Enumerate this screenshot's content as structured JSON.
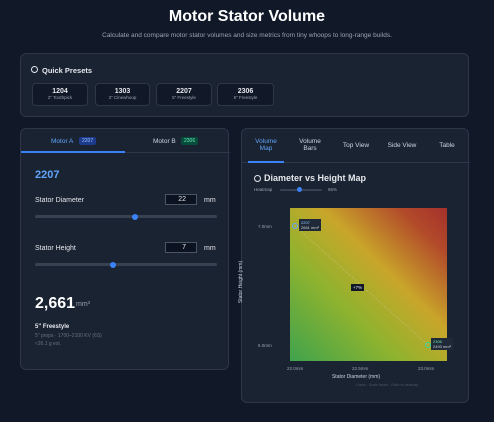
{
  "header": {
    "title": "Motor Stator Volume",
    "subtitle": "Calculate and compare motor stator volumes and size metrics from tiny whoops to long-range builds."
  },
  "presets": {
    "title": "Quick Presets",
    "items": [
      {
        "code": "1204",
        "label": "2\" Toothpick"
      },
      {
        "code": "1303",
        "label": "3\" Cinewhoop"
      },
      {
        "code": "2207",
        "label": "5\" Freestyle"
      },
      {
        "code": "2306",
        "label": "5\" Freestyle"
      }
    ]
  },
  "motor_panel": {
    "tabs": [
      {
        "label": "Motor A",
        "badge": "2207"
      },
      {
        "label": "Motor B",
        "badge": "2306"
      }
    ],
    "heading": "2207",
    "fields": [
      {
        "label": "Stator Diameter",
        "value": "22",
        "unit": "mm"
      },
      {
        "label": "Stator Height",
        "value": "7",
        "unit": "mm"
      }
    ],
    "volume": "2,661",
    "volume_unit": "mm³",
    "class_name": "5\" Freestyle",
    "details": [
      "5\" props · 1700–2100 KV (6S)",
      "≈26.1 g est."
    ]
  },
  "map_panel": {
    "tabs": [
      "Volume Map",
      "Volume Bars",
      "Top View",
      "Side View",
      "Table"
    ],
    "title": "Diameter vs Height Map",
    "heatmap_label": "Heatmap",
    "heatmap_value": "65%",
    "y_axis_label": "Stator Height (mm)",
    "x_axis_label": "Stator Diameter (mm)",
    "y_ticks": [
      "7.0mm",
      "6.0mm"
    ],
    "x_ticks": [
      "22.0mm",
      "22.5mm",
      "23.0mm"
    ],
    "points": [
      {
        "name": "2207",
        "volume": "2661 mm³"
      },
      {
        "name": "2306",
        "volume": "2493 mm³"
      }
    ],
    "delta": "+7%",
    "footnote": "Linear · Scale bands · Ratio vs heatmap"
  }
}
